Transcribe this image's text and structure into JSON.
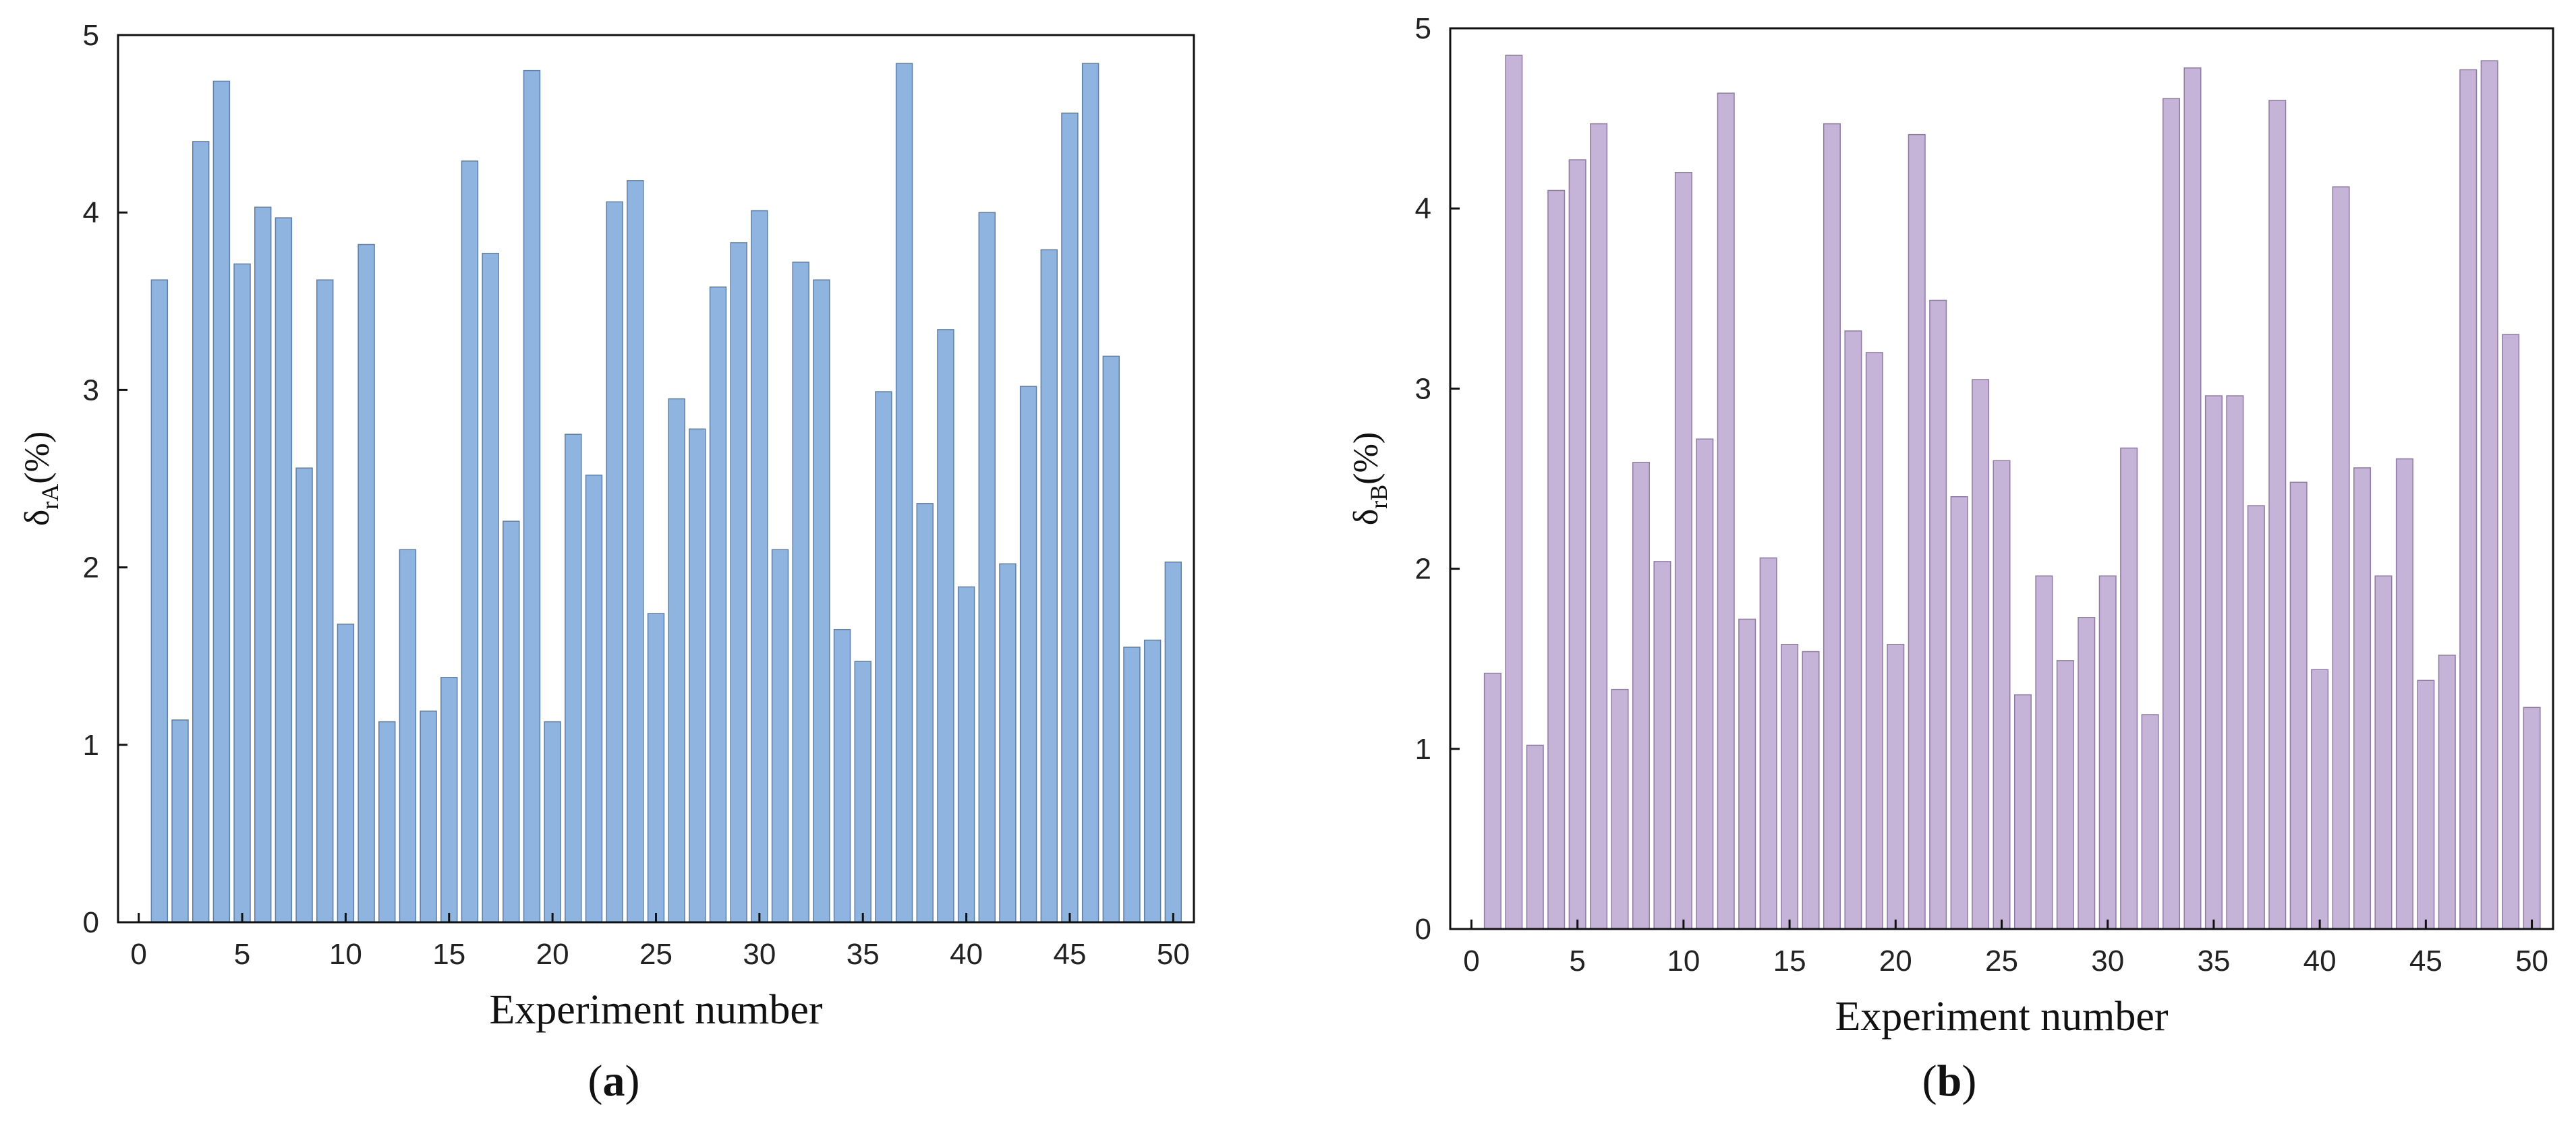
{
  "chart_data": [
    {
      "type": "bar",
      "panel": "a",
      "panel_label": "a",
      "xlabel": "Experiment number",
      "ylabel": {
        "main": "δ",
        "sub": "rA",
        "suffix": "(%)"
      },
      "xlim": [
        -1,
        51
      ],
      "ylim": [
        0,
        5
      ],
      "xticks": [
        0,
        5,
        10,
        15,
        20,
        25,
        30,
        35,
        40,
        45,
        50
      ],
      "yticks": [
        0,
        1,
        2,
        3,
        4,
        5
      ],
      "bar_color": "#8fb4df",
      "bar_edge_color": "#5d7fa8",
      "x": [
        1,
        2,
        3,
        4,
        5,
        6,
        7,
        8,
        9,
        10,
        11,
        12,
        13,
        14,
        15,
        16,
        17,
        18,
        19,
        20,
        21,
        22,
        23,
        24,
        25,
        26,
        27,
        28,
        29,
        30,
        31,
        32,
        33,
        34,
        35,
        36,
        37,
        38,
        39,
        40,
        41,
        42,
        43,
        44,
        45,
        46,
        47,
        48,
        49,
        50
      ],
      "values": [
        3.62,
        1.14,
        4.4,
        4.74,
        3.71,
        4.03,
        3.97,
        2.56,
        3.62,
        1.68,
        3.82,
        1.13,
        2.1,
        1.19,
        1.38,
        4.29,
        3.77,
        2.26,
        4.8,
        1.13,
        2.75,
        2.52,
        4.06,
        4.18,
        1.74,
        2.95,
        2.78,
        3.58,
        3.83,
        4.01,
        2.1,
        3.72,
        3.62,
        1.65,
        1.47,
        2.99,
        4.84,
        2.36,
        3.34,
        1.89,
        4.0,
        2.02,
        3.02,
        3.79,
        4.56,
        4.84,
        3.19,
        1.55,
        1.59,
        2.03
      ]
    },
    {
      "type": "bar",
      "panel": "b",
      "panel_label": "b",
      "xlabel": "Experiment number",
      "ylabel": {
        "main": "δ",
        "sub": "rB",
        "suffix": "(%)"
      },
      "xlim": [
        -1,
        51
      ],
      "ylim": [
        0,
        5
      ],
      "xticks": [
        0,
        5,
        10,
        15,
        20,
        25,
        30,
        35,
        40,
        45,
        50
      ],
      "yticks": [
        0,
        1,
        2,
        3,
        4,
        5
      ],
      "bar_color": "#c6b3d8",
      "bar_edge_color": "#8f7aa6",
      "x": [
        1,
        2,
        3,
        4,
        5,
        6,
        7,
        8,
        9,
        10,
        11,
        12,
        13,
        14,
        15,
        16,
        17,
        18,
        19,
        20,
        21,
        22,
        23,
        24,
        25,
        26,
        27,
        28,
        29,
        30,
        31,
        32,
        33,
        34,
        35,
        36,
        37,
        38,
        39,
        40,
        41,
        42,
        43,
        44,
        45,
        46,
        47,
        48,
        49,
        50
      ],
      "values": [
        1.42,
        4.85,
        1.02,
        4.1,
        4.27,
        4.47,
        1.33,
        2.59,
        2.04,
        4.2,
        2.72,
        4.64,
        1.72,
        2.06,
        1.58,
        1.54,
        4.47,
        3.32,
        3.2,
        1.58,
        4.41,
        3.49,
        2.4,
        3.05,
        2.6,
        1.3,
        1.96,
        1.49,
        1.73,
        1.96,
        2.67,
        1.19,
        4.61,
        4.78,
        2.96,
        2.96,
        2.35,
        4.6,
        2.48,
        1.44,
        4.12,
        2.56,
        1.96,
        2.61,
        1.38,
        1.52,
        4.77,
        4.82,
        3.3,
        1.23
      ]
    }
  ]
}
